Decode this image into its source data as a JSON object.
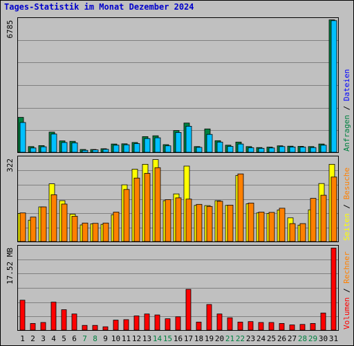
{
  "title": "Tages-Statistik im Monat Dezember 2024",
  "colors": {
    "background": "#c0c0c0",
    "title": "#0000cc",
    "anfragen": "#008040",
    "dateien": "#00c0ff",
    "seiten": "#ffff00",
    "besuche": "#ff8000",
    "rechner": "#ff8000",
    "volumen": "#ff0000",
    "weekday_label": "#000000",
    "weekend_label": "#008040",
    "separator": "#000000"
  },
  "legends": {
    "top": [
      {
        "text": "Anfragen",
        "color": "#008040"
      },
      {
        "text": " / ",
        "color": "#000000"
      },
      {
        "text": "Dateien",
        "color": "#0000ff"
      }
    ],
    "mid": [
      {
        "text": "Seiten",
        "color": "#ffff00"
      },
      {
        "text": " / ",
        "color": "#000000"
      },
      {
        "text": "Besuche",
        "color": "#ff8000"
      }
    ],
    "bot": [
      {
        "text": "Volumen",
        "color": "#ff0000"
      },
      {
        "text": " / ",
        "color": "#000000"
      },
      {
        "text": "Rechner",
        "color": "#ff8000"
      }
    ]
  },
  "chart_data": [
    {
      "type": "bar",
      "panel": "top",
      "ymax_label": "6785",
      "ylim": [
        0,
        6785
      ],
      "grid": true,
      "categories": [
        "1",
        "2",
        "3",
        "4",
        "5",
        "6",
        "7",
        "8",
        "9",
        "10",
        "11",
        "12",
        "13",
        "14",
        "15",
        "16",
        "17",
        "18",
        "19",
        "20",
        "21",
        "22",
        "23",
        "24",
        "25",
        "26",
        "27",
        "28",
        "29",
        "30",
        "31"
      ],
      "weekend": [
        false,
        false,
        false,
        false,
        false,
        false,
        true,
        true,
        false,
        false,
        false,
        false,
        false,
        true,
        true,
        false,
        false,
        false,
        false,
        false,
        true,
        true,
        false,
        false,
        false,
        false,
        false,
        true,
        true,
        false,
        false
      ],
      "series": [
        {
          "name": "Anfragen",
          "color": "#008040",
          "values": [
            1780,
            290,
            340,
            1030,
            580,
            560,
            140,
            140,
            180,
            420,
            430,
            500,
            800,
            840,
            390,
            1110,
            1490,
            290,
            1190,
            590,
            360,
            520,
            290,
            240,
            260,
            330,
            310,
            300,
            290,
            420,
            6760
          ]
        },
        {
          "name": "Dateien",
          "color": "#00c0ff",
          "values": [
            1520,
            220,
            280,
            930,
            500,
            480,
            100,
            120,
            150,
            360,
            380,
            440,
            700,
            740,
            330,
            1010,
            1330,
            250,
            910,
            520,
            300,
            420,
            230,
            200,
            220,
            290,
            270,
            260,
            240,
            360,
            6720
          ]
        }
      ]
    },
    {
      "type": "bar",
      "panel": "middle",
      "ymax_label": "322",
      "ylim": [
        0,
        322
      ],
      "grid": true,
      "categories": [
        "1",
        "2",
        "3",
        "4",
        "5",
        "6",
        "7",
        "8",
        "9",
        "10",
        "11",
        "12",
        "13",
        "14",
        "15",
        "16",
        "17",
        "18",
        "19",
        "20",
        "21",
        "22",
        "23",
        "24",
        "25",
        "26",
        "27",
        "28",
        "29",
        "30",
        "31"
      ],
      "series": [
        {
          "name": "Seiten",
          "color": "#ffff00",
          "values": [
            108,
            82,
            133,
            222,
            157,
            105,
            64,
            68,
            66,
            103,
            218,
            278,
            297,
            315,
            157,
            183,
            290,
            139,
            138,
            157,
            139,
            254,
            145,
            110,
            108,
            121,
            91,
            63,
            122,
            223,
            297
          ]
        },
        {
          "name": "Besuche",
          "color": "#ff8000",
          "values": [
            110,
            94,
            133,
            180,
            144,
            97,
            71,
            70,
            71,
            113,
            200,
            244,
            262,
            284,
            161,
            168,
            163,
            143,
            135,
            155,
            140,
            260,
            148,
            113,
            112,
            128,
            69,
            69,
            166,
            178,
            248
          ]
        }
      ]
    },
    {
      "type": "bar",
      "panel": "bottom",
      "ymax_label": "17.52 MB",
      "ylim": [
        0,
        17.52
      ],
      "grid": true,
      "categories": [
        "1",
        "2",
        "3",
        "4",
        "5",
        "6",
        "7",
        "8",
        "9",
        "10",
        "11",
        "12",
        "13",
        "14",
        "15",
        "16",
        "17",
        "18",
        "19",
        "20",
        "21",
        "22",
        "23",
        "24",
        "25",
        "26",
        "27",
        "28",
        "29",
        "30",
        "31"
      ],
      "series": [
        {
          "name": "Volumen",
          "color": "#ff0000",
          "values": [
            6.3,
            1.4,
            1.6,
            5.9,
            4.3,
            3.4,
            1.0,
            1.0,
            0.7,
            2.1,
            2.2,
            3.0,
            3.4,
            3.2,
            2.4,
            2.8,
            8.6,
            1.7,
            5.4,
            3.4,
            2.6,
            1.7,
            1.8,
            1.6,
            1.6,
            1.4,
            1.1,
            1.2,
            1.4,
            3.6,
            17.3
          ]
        }
      ]
    }
  ]
}
